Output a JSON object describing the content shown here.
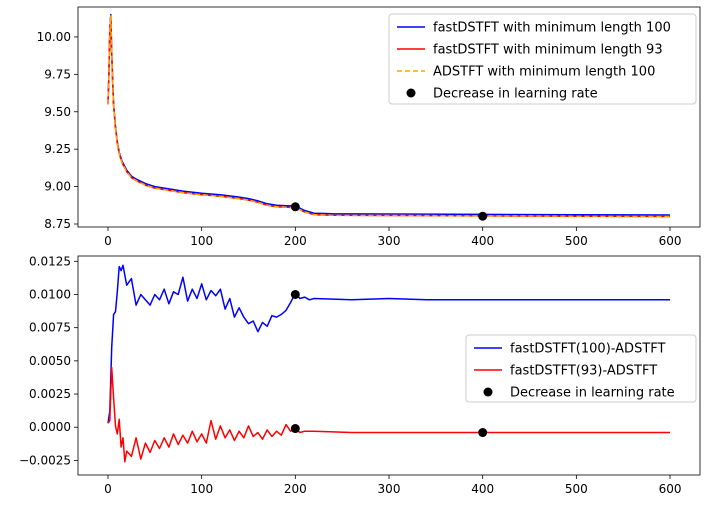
{
  "chart_data": [
    {
      "type": "line",
      "xlim": [
        -32,
        632
      ],
      "ylim": [
        8.73,
        10.2
      ],
      "xticks": [
        "0",
        "100",
        "200",
        "300",
        "400",
        "500",
        "600"
      ],
      "yticks": [
        "8.75",
        "9.00",
        "9.25",
        "9.50",
        "9.75",
        "10.00"
      ],
      "xtick_values": [
        0,
        100,
        200,
        300,
        400,
        500,
        600
      ],
      "ytick_values": [
        8.75,
        9.0,
        9.25,
        9.5,
        9.75,
        10.0
      ],
      "legend_position": "upper right",
      "series": [
        {
          "name": "fastDSTFT with minimum length 100",
          "color": "#0000ff",
          "style": "solid",
          "x": [
            0,
            1,
            2,
            3,
            4,
            5,
            6,
            8,
            10,
            12,
            15,
            20,
            25,
            30,
            40,
            50,
            60,
            80,
            100,
            120,
            140,
            150,
            160,
            170,
            180,
            190,
            200,
            210,
            220,
            240,
            300,
            400,
            500,
            600
          ],
          "y": [
            9.56,
            9.75,
            10.05,
            10.15,
            9.9,
            9.7,
            9.55,
            9.4,
            9.3,
            9.23,
            9.17,
            9.11,
            9.07,
            9.05,
            9.02,
            9.0,
            8.99,
            8.97,
            8.955,
            8.945,
            8.93,
            8.92,
            8.905,
            8.885,
            8.875,
            8.872,
            8.87,
            8.84,
            8.822,
            8.818,
            8.817,
            8.814,
            8.812,
            8.81
          ]
        },
        {
          "name": "fastDSTFT with minimum length 93",
          "color": "#ff0000",
          "style": "solid",
          "x": [
            0,
            1,
            2,
            3,
            4,
            5,
            6,
            8,
            10,
            12,
            15,
            20,
            25,
            30,
            40,
            50,
            60,
            80,
            100,
            120,
            140,
            150,
            160,
            170,
            180,
            190,
            200,
            210,
            220,
            240,
            300,
            400,
            500,
            600
          ],
          "y": [
            9.55,
            9.74,
            10.04,
            10.14,
            9.89,
            9.69,
            9.54,
            9.39,
            9.29,
            9.22,
            9.16,
            9.1,
            9.06,
            9.04,
            9.01,
            8.99,
            8.98,
            8.96,
            8.945,
            8.935,
            8.92,
            8.91,
            8.895,
            8.875,
            8.865,
            8.862,
            8.86,
            8.83,
            8.812,
            8.808,
            8.807,
            8.804,
            8.802,
            8.8
          ]
        },
        {
          "name": "ADSTFT with minimum length 100",
          "color": "#ffa500",
          "style": "dashed",
          "x": [
            0,
            1,
            2,
            3,
            4,
            5,
            6,
            8,
            10,
            12,
            15,
            20,
            25,
            30,
            40,
            50,
            60,
            80,
            100,
            120,
            140,
            150,
            160,
            170,
            180,
            190,
            200,
            210,
            220,
            240,
            300,
            400,
            500,
            600
          ],
          "y": [
            9.55,
            9.74,
            10.04,
            10.14,
            9.89,
            9.69,
            9.54,
            9.39,
            9.29,
            9.22,
            9.16,
            9.1,
            9.06,
            9.04,
            9.01,
            8.99,
            8.98,
            8.96,
            8.945,
            8.935,
            8.92,
            8.91,
            8.895,
            8.875,
            8.865,
            8.862,
            8.86,
            8.83,
            8.812,
            8.808,
            8.807,
            8.804,
            8.802,
            8.8
          ]
        }
      ],
      "markers": {
        "name": "Decrease in learning rate",
        "color": "#000000",
        "x": [
          200,
          400
        ],
        "y": [
          8.865,
          8.802
        ]
      }
    },
    {
      "type": "line",
      "xlim": [
        -32,
        632
      ],
      "ylim": [
        -0.0036,
        0.0129
      ],
      "xticks": [
        "0",
        "100",
        "200",
        "300",
        "400",
        "500",
        "600"
      ],
      "yticks": [
        "−0.0025",
        "0.0000",
        "0.0025",
        "0.0050",
        "0.0075",
        "0.0100",
        "0.0125"
      ],
      "xtick_values": [
        0,
        100,
        200,
        300,
        400,
        500,
        600
      ],
      "ytick_values": [
        -0.0025,
        0.0,
        0.0025,
        0.005,
        0.0075,
        0.01,
        0.0125
      ],
      "legend_position": "center right",
      "series": [
        {
          "name": "fastDSTFT(100)-ADSTFT",
          "color": "#0000ff",
          "style": "solid",
          "x": [
            0,
            2,
            4,
            6,
            8,
            10,
            12,
            14,
            16,
            20,
            25,
            30,
            35,
            40,
            45,
            50,
            55,
            60,
            65,
            70,
            75,
            80,
            85,
            90,
            95,
            100,
            105,
            110,
            115,
            120,
            125,
            130,
            135,
            140,
            145,
            150,
            155,
            160,
            165,
            170,
            175,
            180,
            185,
            190,
            195,
            200,
            205,
            210,
            215,
            220,
            260,
            300,
            340,
            380,
            400,
            500,
            600
          ],
          "y": [
            0.0003,
            0.0012,
            0.006,
            0.0085,
            0.0087,
            0.0102,
            0.0121,
            0.0118,
            0.0122,
            0.0107,
            0.0112,
            0.0092,
            0.01,
            0.0096,
            0.0092,
            0.01,
            0.0096,
            0.0104,
            0.0093,
            0.0102,
            0.01,
            0.0113,
            0.0095,
            0.0104,
            0.0097,
            0.0108,
            0.0096,
            0.0103,
            0.0099,
            0.0104,
            0.0089,
            0.0097,
            0.0083,
            0.009,
            0.0083,
            0.0078,
            0.008,
            0.0072,
            0.0079,
            0.0076,
            0.0084,
            0.0083,
            0.0085,
            0.0088,
            0.0094,
            0.0101,
            0.0097,
            0.0098,
            0.0096,
            0.0097,
            0.0096,
            0.0097,
            0.0096,
            0.0096,
            0.0096,
            0.0096,
            0.0096
          ]
        },
        {
          "name": "fastDSTFT(93)-ADSTFT",
          "color": "#ff0000",
          "style": "solid",
          "x": [
            0,
            2,
            4,
            6,
            8,
            10,
            12,
            14,
            16,
            18,
            20,
            25,
            30,
            35,
            40,
            45,
            50,
            55,
            60,
            65,
            70,
            75,
            80,
            85,
            90,
            95,
            100,
            105,
            110,
            115,
            120,
            125,
            130,
            135,
            140,
            145,
            150,
            155,
            160,
            165,
            170,
            175,
            180,
            185,
            190,
            195,
            200,
            205,
            210,
            220,
            260,
            300,
            340,
            380,
            400,
            500,
            600
          ],
          "y": [
            0.0003,
            0.0005,
            0.0045,
            0.0022,
            0.0001,
            -0.0005,
            0.0006,
            -0.0015,
            -0.0008,
            -0.0026,
            -0.0018,
            -0.0022,
            -0.0008,
            -0.0024,
            -0.0012,
            -0.0019,
            -0.001,
            -0.0016,
            -0.0008,
            -0.0015,
            -0.0005,
            -0.0013,
            -0.0006,
            -0.0012,
            -0.0003,
            -0.0011,
            -0.0005,
            -0.0012,
            0.0005,
            -0.0009,
            0.0001,
            -0.0008,
            -0.0002,
            -0.001,
            -0.0003,
            -0.0008,
            0.0001,
            -0.0007,
            -0.0004,
            -0.0009,
            -0.0002,
            -0.0007,
            -0.0003,
            -0.0006,
            0.0002,
            -0.0003,
            -0.0001,
            -0.0004,
            -0.0003,
            -0.0003,
            -0.0004,
            -0.0004,
            -0.0004,
            -0.0004,
            -0.0004,
            -0.0004,
            -0.0004
          ]
        }
      ],
      "markers": {
        "name": "Decrease in learning rate",
        "color": "#000000",
        "x": [
          200,
          200,
          400
        ],
        "y": [
          0.01,
          -0.0001,
          -0.0004
        ]
      }
    }
  ]
}
